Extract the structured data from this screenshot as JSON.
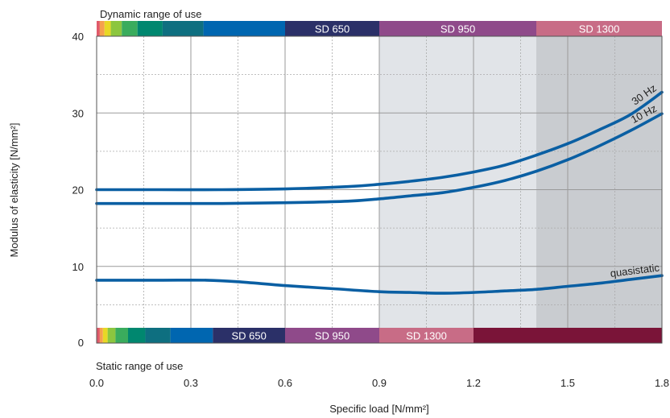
{
  "chart_data": {
    "type": "line",
    "xlabel": "Specific load [N/mm²]",
    "ylabel": "Modulus of elasticity [N/mm²]",
    "xlim": [
      0,
      1.8
    ],
    "ylim": [
      0,
      40
    ],
    "x_ticks": [
      "0.0",
      "0.3",
      "0.6",
      "0.9",
      "1.2",
      "1.5",
      "1.8"
    ],
    "y_ticks": [
      "0",
      "10",
      "20",
      "30",
      "40"
    ],
    "grid": "dotted",
    "shaded_regions": [
      {
        "x": [
          0.9,
          1.4
        ],
        "color": "#e1e4e8"
      },
      {
        "x": [
          1.4,
          1.8
        ],
        "color": "#c9ccd0"
      }
    ],
    "dynamic_range": {
      "title": "Dynamic range of use",
      "segments": [
        {
          "x": [
            0.0,
            0.01
          ],
          "color": "#e05a6a",
          "label": ""
        },
        {
          "x": [
            0.01,
            0.025
          ],
          "color": "#f6a04d",
          "label": ""
        },
        {
          "x": [
            0.025,
            0.045
          ],
          "color": "#e8d825",
          "label": ""
        },
        {
          "x": [
            0.045,
            0.08
          ],
          "color": "#8cc63f",
          "label": ""
        },
        {
          "x": [
            0.08,
            0.13
          ],
          "color": "#3aac5d",
          "label": ""
        },
        {
          "x": [
            0.13,
            0.21
          ],
          "color": "#00876f",
          "label": ""
        },
        {
          "x": [
            0.21,
            0.34
          ],
          "color": "#0e6f80",
          "label": ""
        },
        {
          "x": [
            0.34,
            0.6
          ],
          "color": "#0066b0",
          "label": ""
        },
        {
          "x": [
            0.6,
            0.9
          ],
          "color": "#2b3068",
          "label": "SD 650"
        },
        {
          "x": [
            0.9,
            1.4
          ],
          "color": "#8f4a8a",
          "label": "SD 950"
        },
        {
          "x": [
            1.4,
            1.8
          ],
          "color": "#c86c86",
          "label": "SD 1300"
        }
      ]
    },
    "static_range": {
      "title": "Static range of use",
      "segments": [
        {
          "x": [
            0.0,
            0.01
          ],
          "color": "#e05a6a",
          "label": ""
        },
        {
          "x": [
            0.01,
            0.02
          ],
          "color": "#f6a04d",
          "label": ""
        },
        {
          "x": [
            0.02,
            0.035
          ],
          "color": "#e8d825",
          "label": ""
        },
        {
          "x": [
            0.035,
            0.06
          ],
          "color": "#8cc63f",
          "label": ""
        },
        {
          "x": [
            0.06,
            0.1
          ],
          "color": "#3aac5d",
          "label": ""
        },
        {
          "x": [
            0.1,
            0.155
          ],
          "color": "#00876f",
          "label": ""
        },
        {
          "x": [
            0.155,
            0.235
          ],
          "color": "#0e6f80",
          "label": ""
        },
        {
          "x": [
            0.235,
            0.37
          ],
          "color": "#0066b0",
          "label": ""
        },
        {
          "x": [
            0.37,
            0.6
          ],
          "color": "#2b3068",
          "label": "SD 650"
        },
        {
          "x": [
            0.6,
            0.9
          ],
          "color": "#8f4a8a",
          "label": "SD 950"
        },
        {
          "x": [
            0.9,
            1.2
          ],
          "color": "#c86c86",
          "label": "SD 1300"
        },
        {
          "x": [
            1.2,
            1.8
          ],
          "color": "#7a1438",
          "label": ""
        }
      ]
    },
    "series": [
      {
        "name": "30 Hz",
        "color": "#0a5fa3",
        "x": [
          0.0,
          0.2,
          0.4,
          0.6,
          0.8,
          0.9,
          1.0,
          1.1,
          1.2,
          1.3,
          1.4,
          1.5,
          1.6,
          1.7,
          1.8
        ],
        "y": [
          20.0,
          20.0,
          20.0,
          20.1,
          20.4,
          20.7,
          21.1,
          21.6,
          22.3,
          23.2,
          24.5,
          26.0,
          27.8,
          29.8,
          32.7
        ]
      },
      {
        "name": "10 Hz",
        "color": "#0a5fa3",
        "x": [
          0.0,
          0.2,
          0.4,
          0.6,
          0.8,
          0.9,
          1.0,
          1.1,
          1.2,
          1.3,
          1.4,
          1.5,
          1.6,
          1.7,
          1.8
        ],
        "y": [
          18.2,
          18.2,
          18.2,
          18.3,
          18.5,
          18.8,
          19.2,
          19.6,
          20.3,
          21.2,
          22.4,
          23.9,
          25.7,
          27.7,
          29.9
        ]
      },
      {
        "name": "quasistatic",
        "color": "#0a5fa3",
        "x": [
          0.0,
          0.2,
          0.35,
          0.45,
          0.6,
          0.75,
          0.9,
          1.0,
          1.1,
          1.2,
          1.3,
          1.4,
          1.5,
          1.6,
          1.7,
          1.8
        ],
        "y": [
          8.2,
          8.2,
          8.2,
          8.0,
          7.5,
          7.1,
          6.7,
          6.6,
          6.5,
          6.6,
          6.8,
          7.0,
          7.4,
          7.8,
          8.3,
          8.8
        ]
      }
    ]
  }
}
